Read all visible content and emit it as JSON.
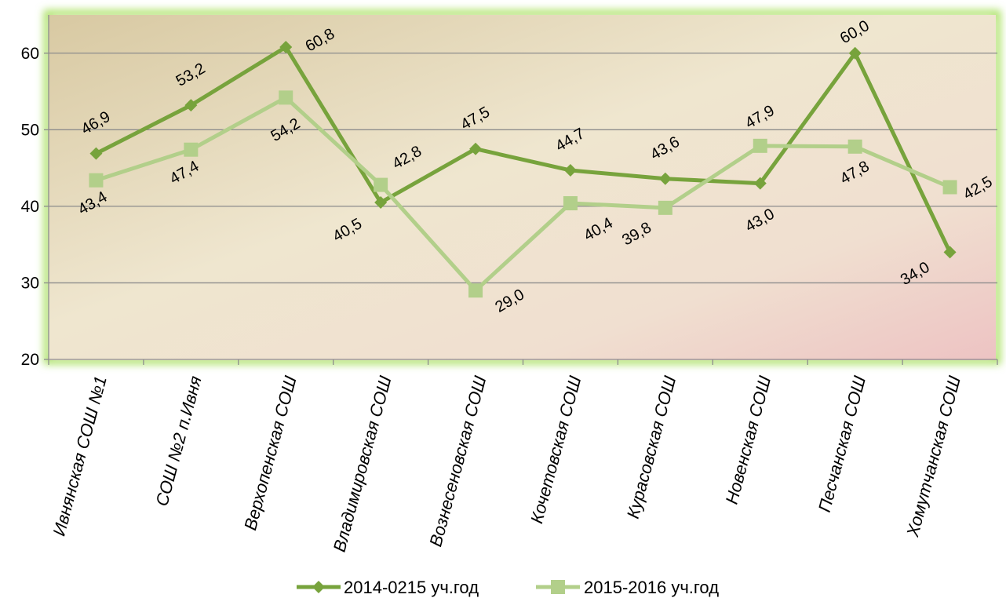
{
  "chart_data": {
    "type": "line",
    "categories": [
      "Ивнянская СОШ №1",
      "СОШ №2 п.Ивня",
      "Верхопенская СОШ",
      "Владимировская СОШ",
      "Вознесеновская СОШ",
      "Кочетовская СОШ",
      "Курасовская СОШ",
      "Новенская СОШ",
      "Песчанская СОШ",
      "Хомутчанская СОШ"
    ],
    "series": [
      {
        "name": "2014-0215 уч.год",
        "values": [
          46.9,
          53.2,
          60.8,
          40.5,
          47.5,
          44.7,
          43.6,
          43.0,
          60.0,
          34.0
        ],
        "labels": [
          "46,9",
          "53,2",
          "60,8",
          "40,5",
          "47,5",
          "44,7",
          "43,6",
          "43,0",
          "60,0",
          "34,0"
        ],
        "color": "#77a33c",
        "marker": "diamond"
      },
      {
        "name": "2015-2016 уч.год",
        "values": [
          43.4,
          47.4,
          54.2,
          42.8,
          29.0,
          40.4,
          39.8,
          47.9,
          47.8,
          42.5
        ],
        "labels": [
          "43,4",
          "47,4",
          "54,2",
          "42,8",
          "29,0",
          "40,4",
          "39,8",
          "47,9",
          "47,8",
          "42,5"
        ],
        "color": "#b2cf8a",
        "marker": "square"
      }
    ],
    "yticks": [
      "20",
      "30",
      "40",
      "50",
      "60"
    ],
    "ylim": [
      20,
      65
    ],
    "title": "",
    "xlabel": "",
    "ylabel": "",
    "grid": true,
    "legend": "bottom"
  }
}
